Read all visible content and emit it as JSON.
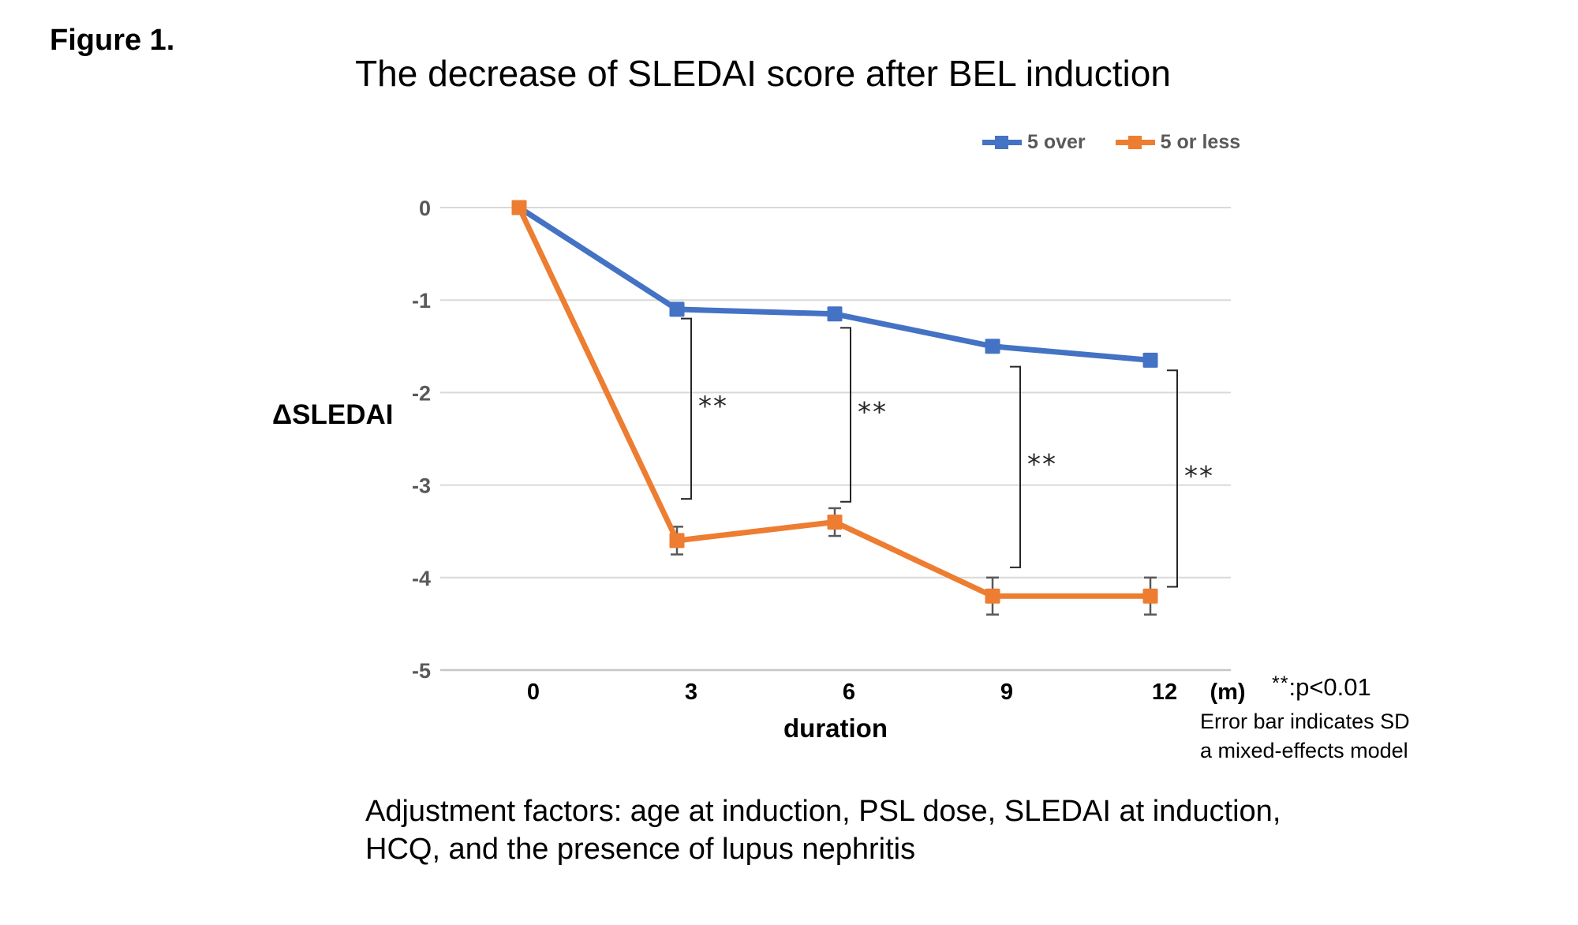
{
  "figure": {
    "label": "Figure 1.",
    "title": "The decrease of SLEDAI score after BEL induction"
  },
  "legend": {
    "items": [
      {
        "label": "5 over",
        "color": "#4472C4"
      },
      {
        "label": "5 or less",
        "color": "#ED7D31"
      }
    ]
  },
  "axis": {
    "y_label": "ΔSLEDAI",
    "x_label": "duration",
    "x_unit": "(m)"
  },
  "notes": {
    "p_sig": "**",
    "p_text": ":p<0.01",
    "sd_line1": "Error bar indicates SD",
    "sd_line2": "a mixed-effects model",
    "bottom_line1": "Adjustment factors: age at induction, PSL dose, SLEDAI at induction,",
    "bottom_line2": "HCQ, and the presence of lupus nephritis"
  },
  "chart_data": {
    "type": "line",
    "title": "The decrease of SLEDAI score after BEL induction",
    "xlabel": "duration",
    "x_unit": "(m)",
    "ylabel": "ΔSLEDAI",
    "categories": [
      0,
      3,
      6,
      9,
      12
    ],
    "x_tick_labels": [
      "0",
      "3",
      "6",
      "9",
      "12"
    ],
    "y_tick_labels": [
      "0",
      "-1",
      "-2",
      "-3",
      "-4",
      "-5"
    ],
    "y_tick_values": [
      0,
      -1,
      -2,
      -3,
      -4,
      -5
    ],
    "ylim": [
      -5,
      0
    ],
    "grid": true,
    "legend_position": "top-right",
    "series": [
      {
        "name": "5 over",
        "color": "#4472C4",
        "values": [
          0,
          -1.1,
          -1.15,
          -1.5,
          -1.65
        ],
        "sd": [
          0,
          0,
          0,
          0,
          0
        ]
      },
      {
        "name": "5 or less",
        "color": "#ED7D31",
        "values": [
          0,
          -3.6,
          -3.4,
          -4.2,
          -4.2
        ],
        "sd": [
          0,
          0.15,
          0.15,
          0.2,
          0.2
        ]
      }
    ],
    "significance_brackets": [
      {
        "x_index": 1,
        "label": "**",
        "y_top": -1.2,
        "y_bottom": -3.15,
        "dx": 18
      },
      {
        "x_index": 2,
        "label": "**",
        "y_top": -1.3,
        "y_bottom": -3.18,
        "dx": 20
      },
      {
        "x_index": 3,
        "label": "**",
        "y_top": -1.72,
        "y_bottom": -3.89,
        "dx": 35
      },
      {
        "x_index": 4,
        "label": "**",
        "y_top": -1.76,
        "y_bottom": -4.1,
        "dx": 34
      }
    ],
    "error_bar_color": "#595959",
    "gridline_color": "#D9D9D9",
    "axisline_color": "#C6C6C6",
    "bracket_color": "#262626",
    "y_tick_color": "#595959",
    "x_tick_color": "#000000"
  }
}
